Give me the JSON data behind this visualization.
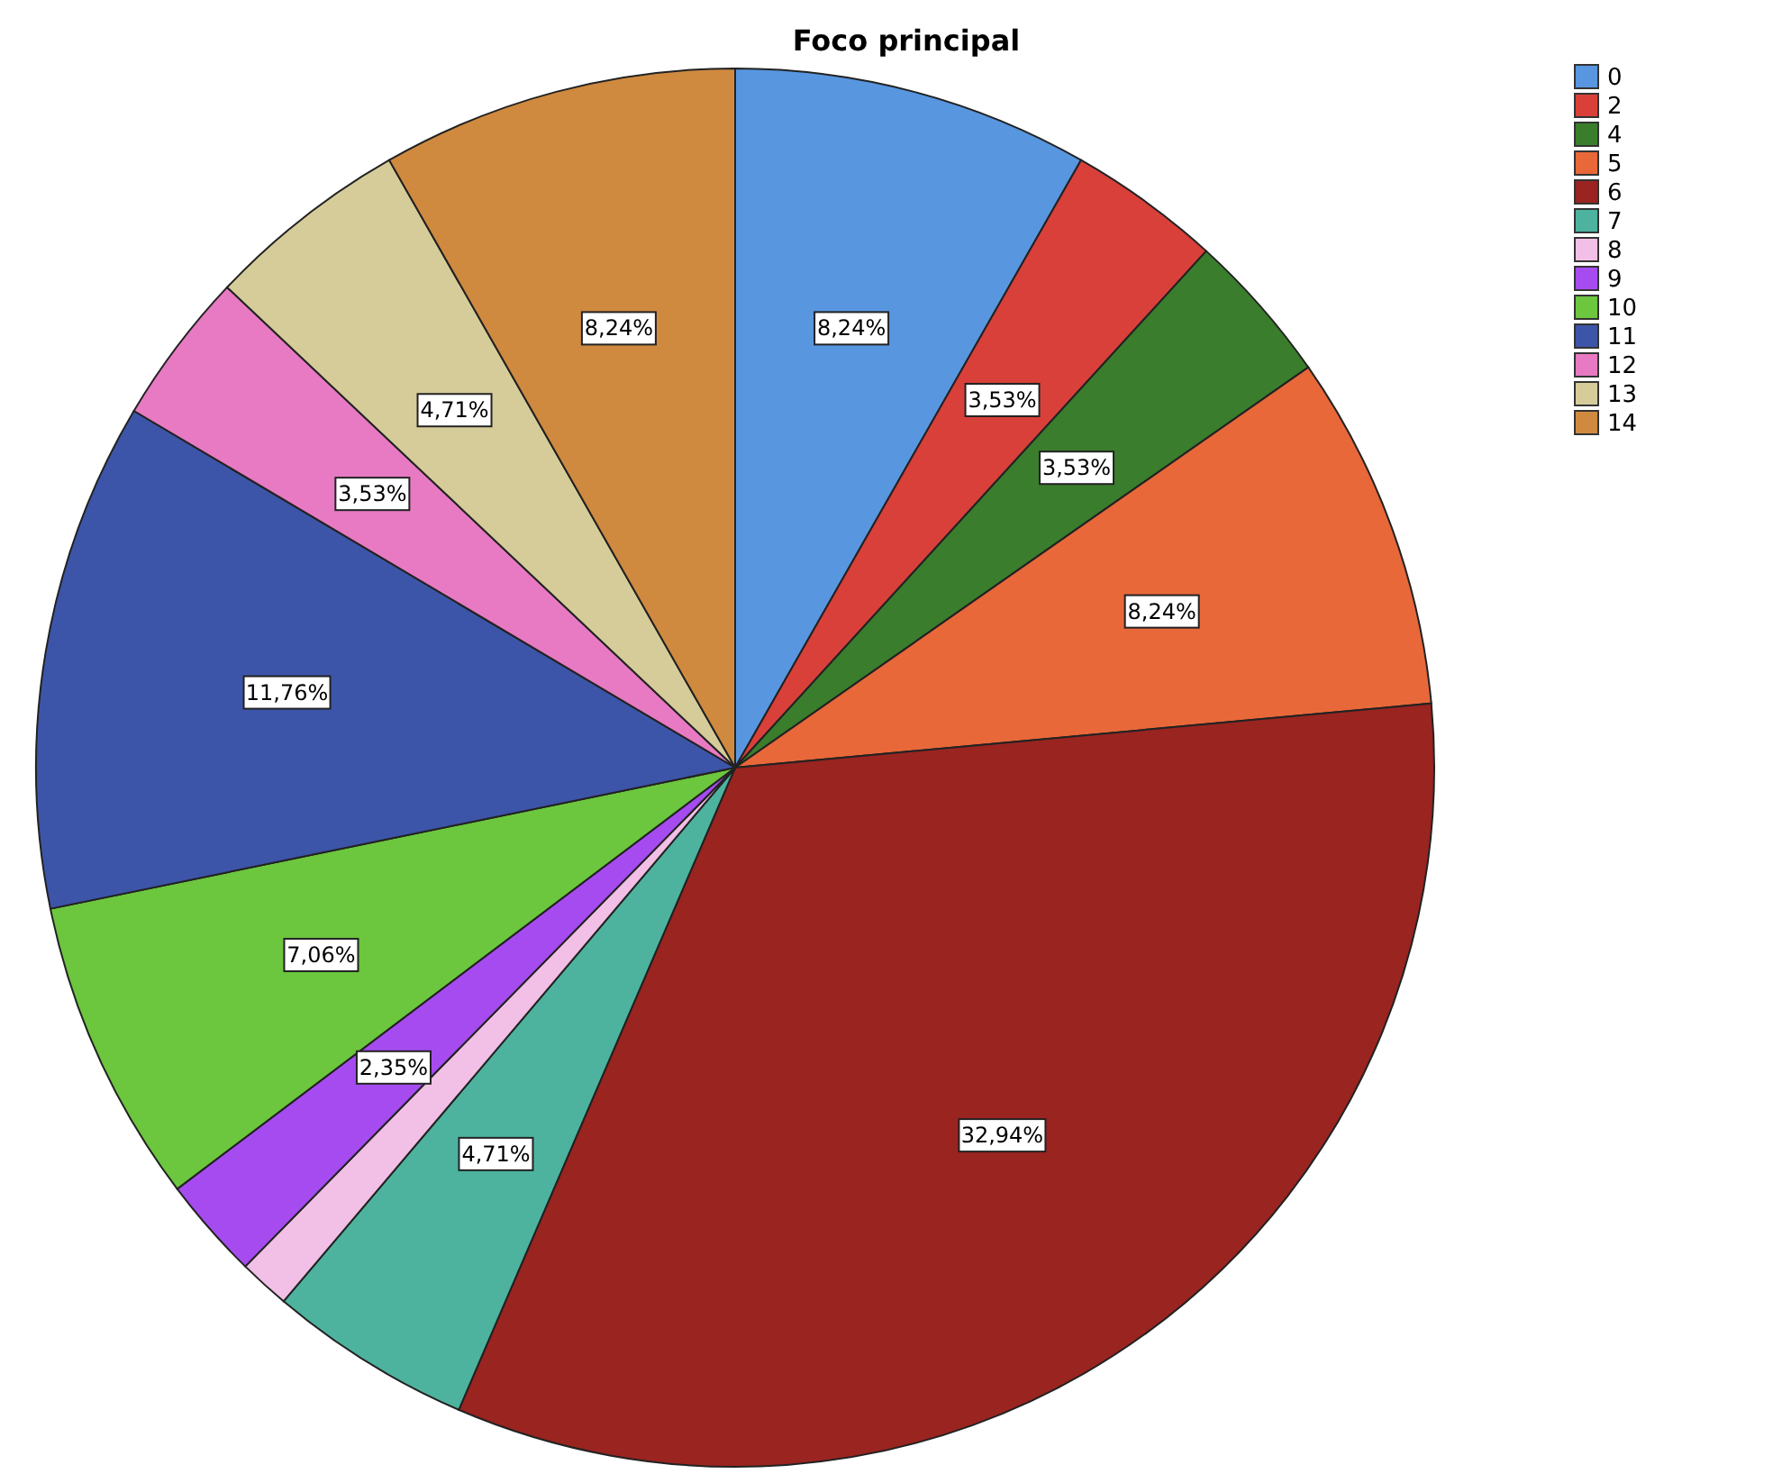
{
  "chart_data": {
    "type": "pie",
    "title": "Foco principal",
    "categories": [
      "0",
      "2",
      "4",
      "5",
      "6",
      "7",
      "8",
      "9",
      "10",
      "11",
      "12",
      "13",
      "14"
    ],
    "values": [
      8.24,
      3.53,
      3.53,
      8.24,
      32.94,
      4.71,
      1.18,
      2.35,
      7.06,
      11.76,
      3.53,
      4.71,
      8.24
    ],
    "value_labels": [
      "8,24%",
      "3,53%",
      "3,53%",
      "8,24%",
      "32,94%",
      "4,71%",
      null,
      "2,35%",
      "7,06%",
      "11,76%",
      "3,53%",
      "4,71%",
      "8,24%"
    ],
    "colors": [
      "#5896e0",
      "#d9403a",
      "#3a7d2c",
      "#e8683a",
      "#9a2420",
      "#4db39e",
      "#f2bfe6",
      "#a64bf0",
      "#6cc63e",
      "#3d55a8",
      "#e77ac2",
      "#d6cc9a",
      "#cf8a40"
    ],
    "legend": "top right"
  }
}
